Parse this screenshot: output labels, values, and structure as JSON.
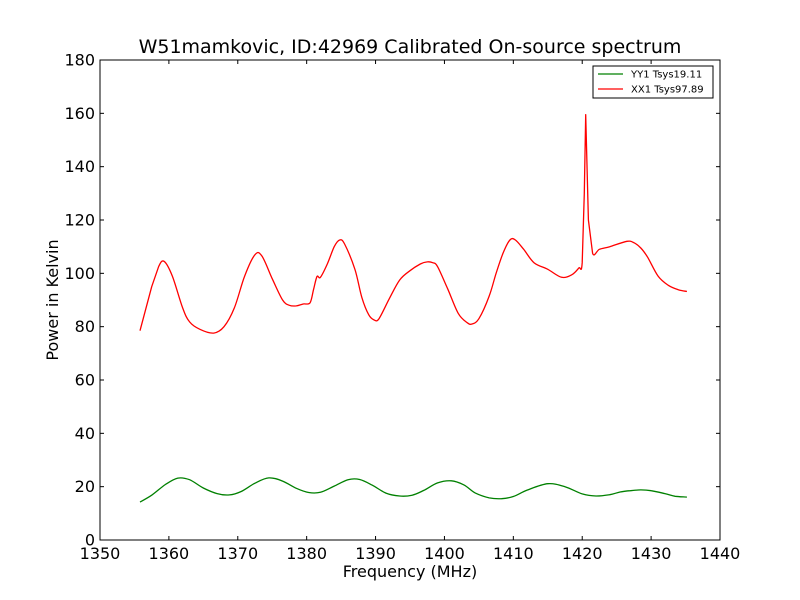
{
  "chart_data": {
    "type": "line",
    "title": "W51mamkovic, ID:42969 Calibrated On-source spectrum",
    "xlabel": "Frequency (MHz)",
    "ylabel": "Power in Kelvin",
    "xlim": [
      1350,
      1440
    ],
    "ylim": [
      0,
      180
    ],
    "xticks": [
      1350,
      1360,
      1370,
      1380,
      1390,
      1400,
      1410,
      1420,
      1430,
      1440
    ],
    "yticks": [
      0,
      20,
      40,
      60,
      80,
      100,
      120,
      140,
      160,
      180
    ],
    "grid": false,
    "legend_position": "top-right",
    "series": [
      {
        "name": "YY1 Tsys19.11",
        "color": "#008000",
        "x": [
          1355.8,
          1357.5,
          1359.5,
          1361.3,
          1363.0,
          1365.0,
          1367.0,
          1368.8,
          1370.5,
          1372.5,
          1374.5,
          1376.5,
          1378.5,
          1380.3,
          1382.0,
          1384.0,
          1386.0,
          1387.7,
          1389.5,
          1391.5,
          1393.5,
          1395.3,
          1397.0,
          1399.0,
          1401.0,
          1402.8,
          1404.5,
          1406.5,
          1408.3,
          1410.0,
          1412.0,
          1415.0,
          1417.5,
          1420.0,
          1422.0,
          1424.0,
          1425.5,
          1427.0,
          1428.5,
          1430.0,
          1432.0,
          1433.5,
          1435.2
        ],
        "values": [
          14.2,
          16.8,
          20.8,
          23.2,
          22.6,
          19.5,
          17.4,
          16.9,
          18.2,
          21.3,
          23.3,
          22.1,
          19.4,
          17.8,
          17.9,
          20.2,
          22.6,
          22.7,
          20.6,
          17.6,
          16.5,
          16.8,
          18.6,
          21.4,
          22.2,
          20.7,
          17.6,
          15.8,
          15.5,
          16.3,
          18.7,
          21.1,
          20.0,
          17.3,
          16.5,
          17.0,
          18.0,
          18.5,
          18.8,
          18.5,
          17.4,
          16.4,
          16.1
        ]
      },
      {
        "name": "XX1 Tsys97.89",
        "color": "#ff0000",
        "x": [
          1355.8,
          1357.5,
          1358.5,
          1359.3,
          1360.5,
          1362.0,
          1363.0,
          1364.5,
          1366.5,
          1368.0,
          1369.5,
          1371.0,
          1372.5,
          1373.5,
          1375.0,
          1376.5,
          1377.5,
          1378.5,
          1379.5,
          1380.5,
          1381.0,
          1381.5,
          1382.0,
          1383.0,
          1384.0,
          1384.8,
          1385.5,
          1387.0,
          1388.0,
          1389.0,
          1389.8,
          1390.5,
          1392.0,
          1393.5,
          1395.0,
          1396.5,
          1397.5,
          1398.3,
          1399.0,
          1400.5,
          1402.0,
          1403.3,
          1404.0,
          1405.0,
          1406.5,
          1407.5,
          1408.5,
          1409.5,
          1410.3,
          1411.5,
          1413.0,
          1415.0,
          1417.0,
          1418.5,
          1419.5,
          1420.0,
          1420.3,
          1420.5,
          1420.9,
          1421.5,
          1422.5,
          1424.0,
          1426.5,
          1427.5,
          1428.5,
          1429.5,
          1431.0,
          1432.5,
          1434.0,
          1435.2
        ],
        "values": [
          78.5,
          95.0,
          102.5,
          104.5,
          99.0,
          87.0,
          81.8,
          79.0,
          77.6,
          80.0,
          87.0,
          99.0,
          107.0,
          106.5,
          98.0,
          90.0,
          88.0,
          87.8,
          88.5,
          89.0,
          94.0,
          98.8,
          98.5,
          103.5,
          110.0,
          112.5,
          111.0,
          101.5,
          91.0,
          84.5,
          82.5,
          83.0,
          90.5,
          97.5,
          101.0,
          103.5,
          104.3,
          104.0,
          102.5,
          94.0,
          85.0,
          81.5,
          81.0,
          83.0,
          91.5,
          100.0,
          107.5,
          112.5,
          112.5,
          109.0,
          104.0,
          101.5,
          98.5,
          99.5,
          102.0,
          104.0,
          130.0,
          159.5,
          120.0,
          107.5,
          109.0,
          110.0,
          112.0,
          111.5,
          109.5,
          106.0,
          99.0,
          95.5,
          93.8,
          93.2
        ]
      }
    ]
  }
}
